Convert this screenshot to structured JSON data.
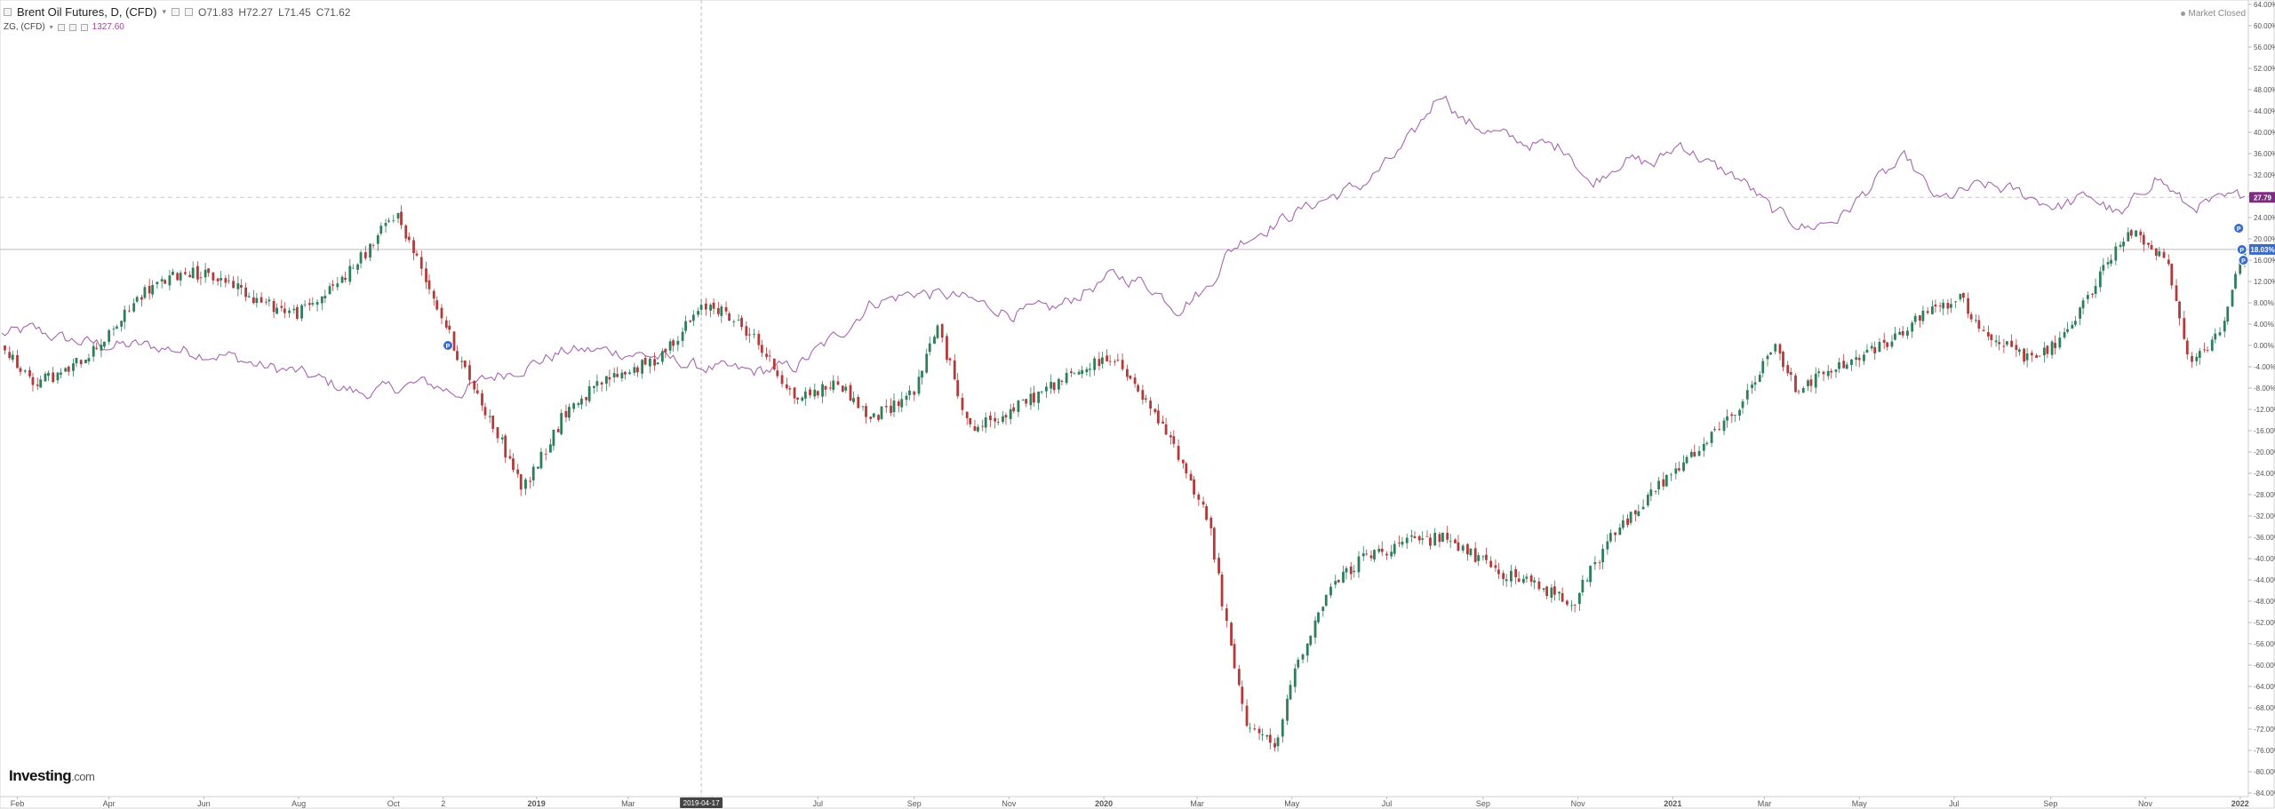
{
  "header": {
    "symbol": "Brent Oil Futures, D, (CFD)",
    "chevron": "▾",
    "open": "O71.83",
    "high": "H72.27",
    "low": "L71.45",
    "close": "C71.62",
    "overlay_symbol": "ZG, (CFD)",
    "overlay_value": "1327.60"
  },
  "status": {
    "market": "Market Closed"
  },
  "crosshair": {
    "date": "2019-04-17"
  },
  "logo": {
    "brand": "Investing",
    "suffix": ".com"
  },
  "colors": {
    "up": "#2e7d5b",
    "down": "#b23a3a",
    "gold_line": "#a566b0",
    "accent": "#3b6cc5",
    "badge_gold": "#7e2c80"
  },
  "chart_data": {
    "type": "line",
    "title": "Brent Oil Futures, D, (CFD)",
    "y_axis": {
      "unit": "% change",
      "range": [
        -84,
        64
      ],
      "ticks": [
        "64.00%",
        "60.00%",
        "56.00%",
        "52.00%",
        "48.00%",
        "44.00%",
        "40.00%",
        "36.00%",
        "32.00%",
        "28.00%",
        "24.00%",
        "20.00%",
        "16.00%",
        "12.00%",
        "8.00%",
        "4.00%",
        "0.00%",
        "-4.00%",
        "-8.00%",
        "-12.00%",
        "-16.00%",
        "-20.00%",
        "-24.00%",
        "-28.00%",
        "-32.00%",
        "-36.00%",
        "-40.00%",
        "-44.00%",
        "-48.00%",
        "-52.00%",
        "-56.00%",
        "-60.00%",
        "-64.00%",
        "-68.00%",
        "-72.00%",
        "-76.00%",
        "-80.00%",
        "-84.00%"
      ],
      "tick_values": [
        64,
        60,
        56,
        52,
        48,
        44,
        40,
        36,
        32,
        28,
        24,
        20,
        16,
        12,
        8,
        4,
        0,
        -4,
        -8,
        -12,
        -16,
        -20,
        -24,
        -28,
        -32,
        -36,
        -40,
        -44,
        -48,
        -52,
        -56,
        -60,
        -64,
        -68,
        -72,
        -76,
        -80,
        -84
      ]
    },
    "x_axis": {
      "range": [
        "2018-01-22",
        "2022-01-04"
      ],
      "ticks": [
        {
          "label": "Feb",
          "date": "2018-02-01"
        },
        {
          "label": "Apr",
          "date": "2018-04-01"
        },
        {
          "label": "Jun",
          "date": "2018-06-01"
        },
        {
          "label": "Aug",
          "date": "2018-08-01"
        },
        {
          "label": "Oct",
          "date": "2018-10-01"
        },
        {
          "label": "2",
          "date": "2018-11-02"
        },
        {
          "label": "2019",
          "date": "2019-01-01"
        },
        {
          "label": "Mar",
          "date": "2019-03-01"
        },
        {
          "label": "y",
          "date": "2019-04-24"
        },
        {
          "label": "Jul",
          "date": "2019-07-01"
        },
        {
          "label": "Sep",
          "date": "2019-09-01"
        },
        {
          "label": "Nov",
          "date": "2019-11-01"
        },
        {
          "label": "2020",
          "date": "2020-01-01"
        },
        {
          "label": "Mar",
          "date": "2020-03-01"
        },
        {
          "label": "May",
          "date": "2020-05-01"
        },
        {
          "label": "Jul",
          "date": "2020-07-01"
        },
        {
          "label": "Sep",
          "date": "2020-09-01"
        },
        {
          "label": "Nov",
          "date": "2020-11-01"
        },
        {
          "label": "2021",
          "date": "2021-01-01"
        },
        {
          "label": "Mar",
          "date": "2021-03-01"
        },
        {
          "label": "May",
          "date": "2021-05-01"
        },
        {
          "label": "Jul",
          "date": "2021-07-01"
        },
        {
          "label": "Sep",
          "date": "2021-09-01"
        },
        {
          "label": "Nov",
          "date": "2021-11-01"
        },
        {
          "label": "2022",
          "date": "2022-01-01"
        }
      ]
    },
    "series": [
      {
        "name": "Brent Oil Futures, D, (CFD)",
        "style": "candlestick",
        "last_label": "18.03%",
        "x": [
          "2018-01-22",
          "2018-02-12",
          "2018-03-05",
          "2018-04-02",
          "2018-04-23",
          "2018-05-21",
          "2018-06-18",
          "2018-07-09",
          "2018-08-01",
          "2018-08-20",
          "2018-09-10",
          "2018-10-03",
          "2018-10-22",
          "2018-11-12",
          "2018-12-03",
          "2018-12-24",
          "2019-01-21",
          "2019-02-18",
          "2019-03-18",
          "2019-04-15",
          "2019-04-24",
          "2019-05-20",
          "2019-06-17",
          "2019-07-15",
          "2019-08-05",
          "2019-09-03",
          "2019-09-16",
          "2019-10-08",
          "2019-11-04",
          "2019-12-02",
          "2020-01-06",
          "2020-01-27",
          "2020-02-18",
          "2020-03-09",
          "2020-03-20",
          "2020-04-01",
          "2020-04-21",
          "2020-05-04",
          "2020-05-25",
          "2020-06-15",
          "2020-07-13",
          "2020-08-10",
          "2020-09-07",
          "2020-10-05",
          "2020-10-30",
          "2020-11-23",
          "2020-12-21",
          "2021-01-18",
          "2021-02-15",
          "2021-03-08",
          "2021-03-22",
          "2021-04-19",
          "2021-05-17",
          "2021-06-14",
          "2021-07-05",
          "2021-07-19",
          "2021-08-20",
          "2021-09-13",
          "2021-10-04",
          "2021-10-25",
          "2021-11-15",
          "2021-12-01",
          "2021-12-20",
          "2022-01-04"
        ],
        "y": [
          0,
          -7,
          -5,
          2,
          10,
          14,
          12,
          8,
          6,
          10,
          16,
          25,
          13,
          -2,
          -14,
          -27,
          -12,
          -6,
          -3,
          6,
          8,
          2,
          -10,
          -7,
          -14,
          -8,
          4,
          -16,
          -12,
          -7,
          -2,
          -10,
          -20,
          -33,
          -52,
          -70,
          -76,
          -60,
          -46,
          -40,
          -37,
          -36,
          -42,
          -45,
          -48,
          -36,
          -27,
          -20,
          -11,
          0,
          -8,
          -4,
          0,
          6,
          9,
          3,
          -3,
          2,
          14,
          22,
          16,
          -4,
          2,
          18
        ]
      },
      {
        "name": "ZG, (CFD)",
        "style": "line",
        "last_label": "27.79",
        "x": [
          "2018-01-22",
          "2018-02-12",
          "2018-03-05",
          "2018-04-02",
          "2018-04-23",
          "2018-05-21",
          "2018-06-18",
          "2018-07-09",
          "2018-08-01",
          "2018-08-20",
          "2018-09-10",
          "2018-10-03",
          "2018-10-22",
          "2018-11-12",
          "2018-12-03",
          "2018-12-24",
          "2019-01-21",
          "2019-02-18",
          "2019-03-18",
          "2019-04-15",
          "2019-05-20",
          "2019-06-17",
          "2019-07-15",
          "2019-08-05",
          "2019-09-03",
          "2019-10-01",
          "2019-11-04",
          "2019-12-02",
          "2020-01-06",
          "2020-01-27",
          "2020-02-18",
          "2020-03-09",
          "2020-03-20",
          "2020-04-01",
          "2020-04-21",
          "2020-05-18",
          "2020-06-15",
          "2020-07-13",
          "2020-08-06",
          "2020-08-20",
          "2020-09-07",
          "2020-09-28",
          "2020-10-26",
          "2020-11-09",
          "2020-11-30",
          "2020-12-21",
          "2021-01-06",
          "2021-01-25",
          "2021-02-15",
          "2021-03-08",
          "2021-03-29",
          "2021-04-19",
          "2021-05-17",
          "2021-06-01",
          "2021-06-21",
          "2021-07-19",
          "2021-08-09",
          "2021-09-06",
          "2021-09-27",
          "2021-10-18",
          "2021-11-08",
          "2021-11-29",
          "2021-12-20",
          "2022-01-04"
        ],
        "y": [
          2,
          3,
          1,
          0,
          0,
          -1,
          -2,
          -4,
          -5,
          -7,
          -9,
          -8,
          -7,
          -9,
          -6,
          -4,
          -1,
          -1,
          -2,
          -4,
          -5,
          -4,
          2,
          8,
          10,
          9,
          6,
          7,
          13,
          12,
          7,
          11,
          17,
          20,
          23,
          27,
          30,
          37,
          48,
          42,
          40,
          38,
          37,
          30,
          35,
          34,
          38,
          34,
          31,
          25,
          22,
          24,
          32,
          35,
          27,
          30,
          29,
          26,
          28,
          24,
          32,
          26,
          27,
          28
        ]
      }
    ],
    "markers": [
      {
        "label": "P",
        "date": "2018-11-05",
        "value": 0
      },
      {
        "label": "P",
        "date": "2021-12-30",
        "value": 22
      },
      {
        "label": "P",
        "date": "2022-01-01",
        "value": 18
      },
      {
        "label": "P",
        "date": "2022-01-02",
        "value": 16
      }
    ],
    "horizontal_lines": [
      {
        "value": 27.79,
        "style": "dashed"
      },
      {
        "value": 18.03,
        "style": "solid"
      }
    ],
    "grid": false,
    "legend": "top-left"
  }
}
